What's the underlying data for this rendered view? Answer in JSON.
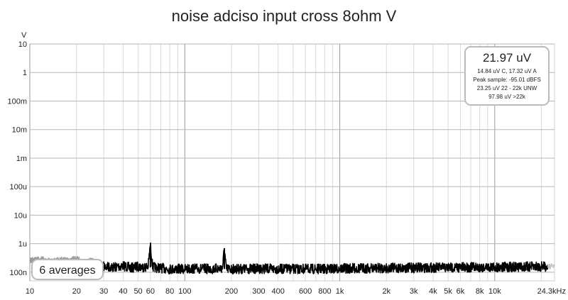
{
  "chart_data": {
    "type": "line",
    "title": "noise adciso input cross 8ohm V",
    "y_unit": "V",
    "x_scale": "log",
    "y_scale": "log",
    "xlim": [
      10,
      24300
    ],
    "ylim": [
      5e-08,
      10
    ],
    "grid": true,
    "x_ticks": [
      {
        "value": 10,
        "label": "10"
      },
      {
        "value": 20,
        "label": "20"
      },
      {
        "value": 30,
        "label": "30"
      },
      {
        "value": 40,
        "label": "40"
      },
      {
        "value": 50,
        "label": "50"
      },
      {
        "value": 60,
        "label": "60"
      },
      {
        "value": 80,
        "label": "80"
      },
      {
        "value": 100,
        "label": "100"
      },
      {
        "value": 200,
        "label": "200"
      },
      {
        "value": 300,
        "label": "300"
      },
      {
        "value": 400,
        "label": "400"
      },
      {
        "value": 600,
        "label": "600"
      },
      {
        "value": 800,
        "label": "800"
      },
      {
        "value": 1000,
        "label": "1k"
      },
      {
        "value": 2000,
        "label": "2k"
      },
      {
        "value": 3000,
        "label": "3k"
      },
      {
        "value": 4000,
        "label": "4k"
      },
      {
        "value": 5000,
        "label": "5k"
      },
      {
        "value": 6000,
        "label": "6k"
      },
      {
        "value": 8000,
        "label": "8k"
      },
      {
        "value": 10000,
        "label": "10k"
      },
      {
        "value": 24300,
        "label": "24.3kHz"
      }
    ],
    "y_ticks": [
      {
        "value": 10,
        "label": "10"
      },
      {
        "value": 1,
        "label": "1"
      },
      {
        "value": 0.1,
        "label": "100m"
      },
      {
        "value": 0.01,
        "label": "10m"
      },
      {
        "value": 0.001,
        "label": "1m"
      },
      {
        "value": 0.0001,
        "label": "100u"
      },
      {
        "value": 1e-05,
        "label": "10u"
      },
      {
        "value": 1e-06,
        "label": "1u"
      },
      {
        "value": 1e-07,
        "label": "100n"
      }
    ],
    "series": [
      {
        "color": "#000000",
        "spectrum_points": [
          [
            30,
            1.6e-07
          ],
          [
            35,
            1.5e-07
          ],
          [
            40,
            1.7e-07
          ],
          [
            45,
            1.4e-07
          ],
          [
            50,
            1.6e-07
          ],
          [
            55,
            1.5e-07
          ],
          [
            58,
            1.6e-07
          ],
          [
            60,
            9e-07
          ],
          [
            62,
            1.5e-07
          ],
          [
            70,
            1.4e-07
          ],
          [
            80,
            1.3e-07
          ],
          [
            100,
            1.3e-07
          ],
          [
            120,
            1.35e-07
          ],
          [
            150,
            1.3e-07
          ],
          [
            175,
            1.4e-07
          ],
          [
            180,
            7e-07
          ],
          [
            185,
            1.3e-07
          ],
          [
            250,
            1.3e-07
          ],
          [
            300,
            1.35e-07
          ],
          [
            400,
            1.3e-07
          ],
          [
            600,
            1.3e-07
          ],
          [
            800,
            1.3e-07
          ],
          [
            1000,
            1.35e-07
          ],
          [
            2000,
            1.4e-07
          ],
          [
            4000,
            1.45e-07
          ],
          [
            8000,
            1.5e-07
          ],
          [
            16000,
            1.55e-07
          ],
          [
            22000,
            1.6e-07
          ]
        ]
      },
      {
        "color": "#9a9a9a",
        "spectrum_points": [
          [
            10,
            2.6e-07
          ],
          [
            12,
            2.9e-07
          ],
          [
            14,
            2.4e-07
          ],
          [
            16,
            2.8e-07
          ],
          [
            18,
            2.5e-07
          ],
          [
            20,
            3.2e-07
          ],
          [
            22,
            2.2e-07
          ],
          [
            25,
            2.6e-07
          ],
          [
            28,
            2e-07
          ],
          [
            30,
            1.8e-07
          ]
        ]
      },
      {
        "color": "#c4c4c4",
        "spectrum_points": [
          [
            22000,
            1.5e-07
          ],
          [
            22500,
            1.7e-07
          ],
          [
            23000,
            1.5e-07
          ],
          [
            23500,
            1.7e-07
          ],
          [
            24300,
            1.6e-07
          ]
        ]
      }
    ],
    "annotations": {
      "readout_main": "21.97 uV",
      "readout_lines": [
        "14.84 uV C, 17.32 uV A",
        "Peak sample: -95.01 dBFS",
        "23.25 uV 22 - 22k UNW",
        "97.98 uV >22k"
      ],
      "averages_label": "6 averages"
    }
  }
}
